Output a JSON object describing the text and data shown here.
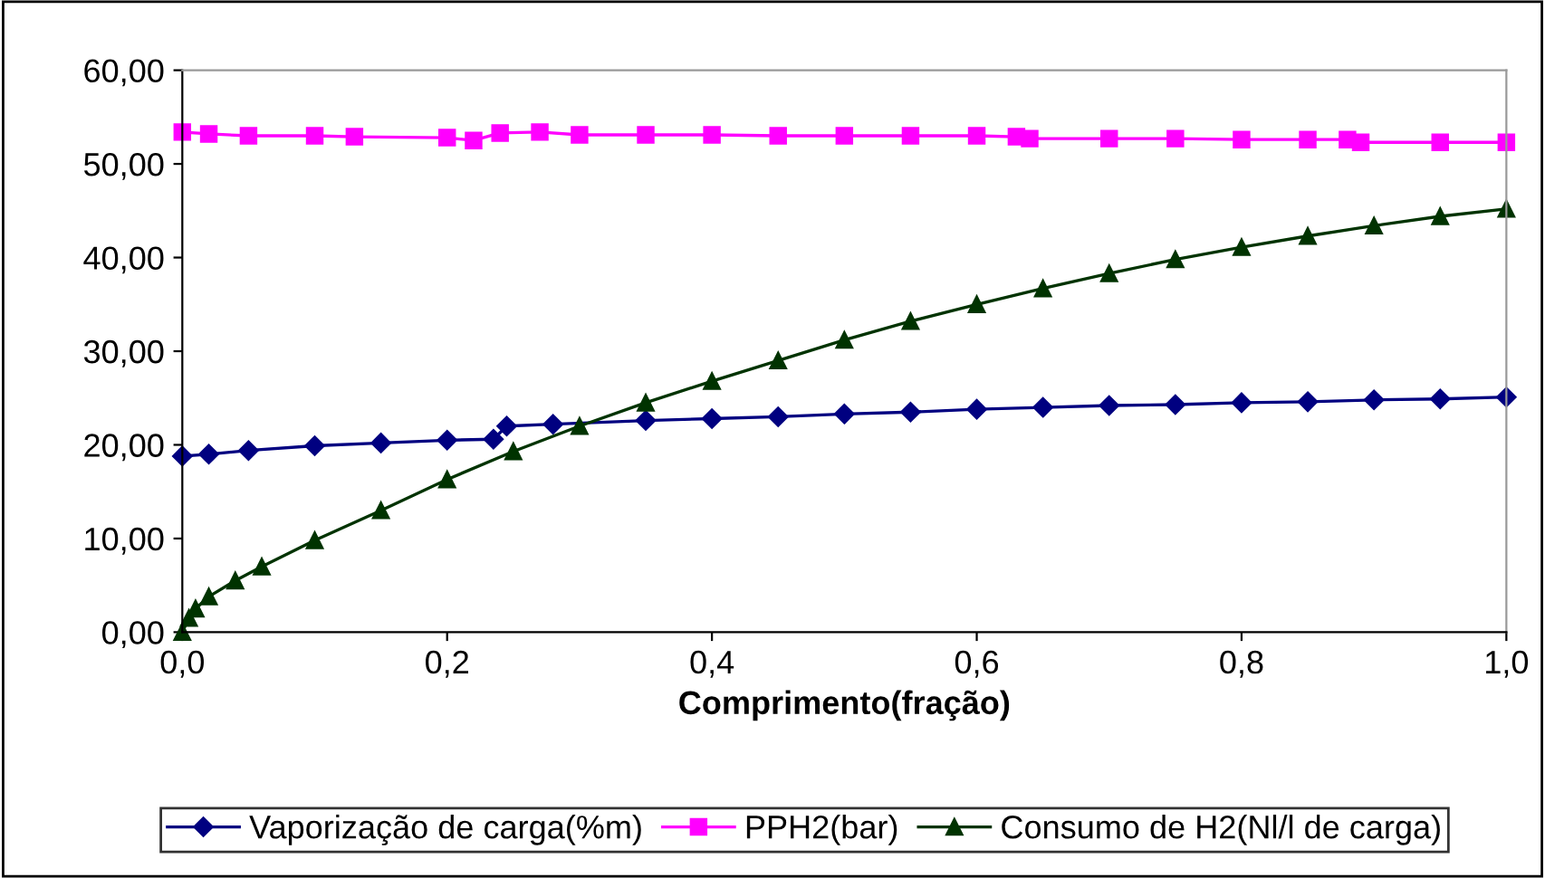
{
  "chart_data": {
    "type": "line",
    "xlabel": "Comprimento(fração)",
    "xlim": [
      0,
      1
    ],
    "ylim": [
      0,
      60
    ],
    "xticks": [
      {
        "value": 0,
        "label": "0,0"
      },
      {
        "value": 0.2,
        "label": "0,2"
      },
      {
        "value": 0.4,
        "label": "0,4"
      },
      {
        "value": 0.6,
        "label": "0,6"
      },
      {
        "value": 0.8,
        "label": "0,8"
      },
      {
        "value": 1,
        "label": "1,0"
      }
    ],
    "yticks": [
      {
        "value": 0,
        "label": "0,00"
      },
      {
        "value": 10,
        "label": "10,00"
      },
      {
        "value": 20,
        "label": "20,00"
      },
      {
        "value": 30,
        "label": "30,00"
      },
      {
        "value": 40,
        "label": "40,00"
      },
      {
        "value": 50,
        "label": "50,00"
      },
      {
        "value": 60,
        "label": "60,00"
      }
    ],
    "grid": false,
    "legend": "bottom",
    "line_style": "solid",
    "series": [
      {
        "name": "Vaporização de carga(%m)",
        "color": "#000080",
        "marker": "diamond",
        "x": [
          0,
          0.02,
          0.05,
          0.1,
          0.15,
          0.2,
          0.235,
          0.245,
          0.28,
          0.35,
          0.4,
          0.45,
          0.5,
          0.55,
          0.6,
          0.65,
          0.7,
          0.75,
          0.8,
          0.85,
          0.9,
          0.95,
          1.0
        ],
        "values": [
          18.8,
          19.0,
          19.4,
          19.9,
          20.2,
          20.5,
          20.6,
          22.0,
          22.2,
          22.6,
          22.8,
          23.0,
          23.3,
          23.5,
          23.8,
          24.0,
          24.2,
          24.3,
          24.5,
          24.6,
          24.8,
          24.9,
          25.1
        ]
      },
      {
        "name": "PPH2(bar)",
        "color": "#ff00ff",
        "marker": "square",
        "x": [
          0,
          0.02,
          0.05,
          0.1,
          0.13,
          0.2,
          0.22,
          0.24,
          0.27,
          0.3,
          0.35,
          0.4,
          0.45,
          0.5,
          0.55,
          0.6,
          0.63,
          0.64,
          0.7,
          0.75,
          0.8,
          0.85,
          0.88,
          0.89,
          0.95,
          1.0
        ],
        "values": [
          53.4,
          53.2,
          53.0,
          53.0,
          52.9,
          52.8,
          52.5,
          53.3,
          53.4,
          53.1,
          53.1,
          53.1,
          53.0,
          53.0,
          53.0,
          53.0,
          52.9,
          52.7,
          52.7,
          52.7,
          52.6,
          52.6,
          52.6,
          52.3,
          52.3,
          52.3
        ]
      },
      {
        "name": "Consumo de H2(Nl/l de carga)",
        "color": "#003300",
        "marker": "triangle",
        "x": [
          0,
          0.005,
          0.01,
          0.02,
          0.04,
          0.06,
          0.1,
          0.15,
          0.2,
          0.25,
          0.3,
          0.35,
          0.4,
          0.45,
          0.5,
          0.55,
          0.6,
          0.65,
          0.7,
          0.75,
          0.8,
          0.85,
          0.9,
          0.95,
          1.0
        ],
        "values": [
          0,
          1.5,
          2.5,
          3.8,
          5.5,
          7.0,
          9.8,
          13.0,
          16.3,
          19.3,
          22.0,
          24.5,
          26.8,
          29.0,
          31.2,
          33.2,
          35.0,
          36.7,
          38.3,
          39.8,
          41.1,
          42.3,
          43.4,
          44.4,
          45.2
        ]
      }
    ]
  }
}
